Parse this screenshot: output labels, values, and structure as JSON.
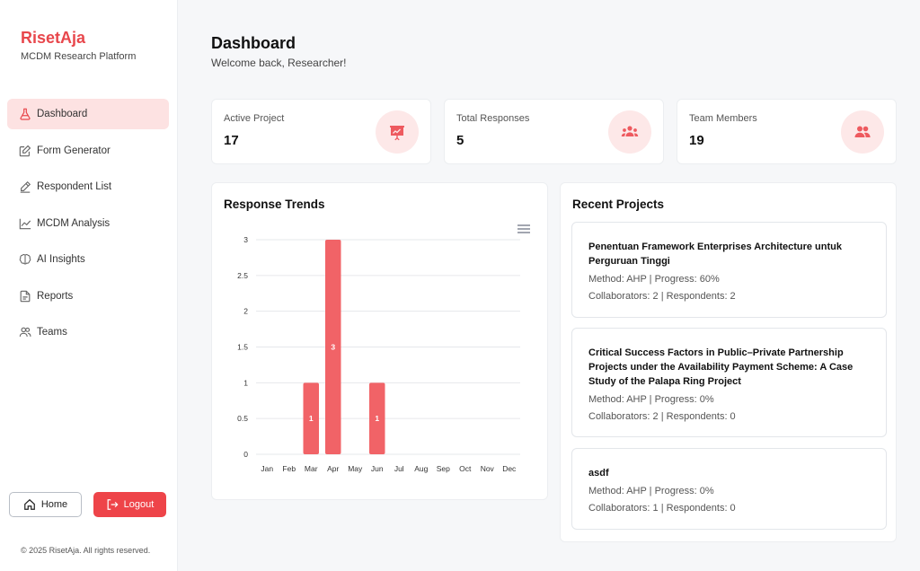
{
  "brand": {
    "name": "RisetAja",
    "subtitle": "MCDM Research Platform"
  },
  "sidebar": {
    "items": [
      {
        "label": "Dashboard",
        "icon": "flask-icon",
        "active": true
      },
      {
        "label": "Form Generator",
        "icon": "edit-icon"
      },
      {
        "label": "Respondent List",
        "icon": "pencil-icon"
      },
      {
        "label": "MCDM Analysis",
        "icon": "line-chart-icon"
      },
      {
        "label": "AI Insights",
        "icon": "brain-icon"
      },
      {
        "label": "Reports",
        "icon": "document-icon"
      },
      {
        "label": "Teams",
        "icon": "users-icon"
      }
    ],
    "home_label": "Home",
    "logout_label": "Logout",
    "copyright": "© 2025 RisetAja. All rights reserved."
  },
  "header": {
    "title": "Dashboard",
    "subtitle": "Welcome back, Researcher!"
  },
  "stats": [
    {
      "label": "Active Project",
      "value": "17",
      "icon": "presentation-icon"
    },
    {
      "label": "Total Responses",
      "value": "5",
      "icon": "group-icon"
    },
    {
      "label": "Team Members",
      "value": "19",
      "icon": "team-icon"
    }
  ],
  "chart": {
    "title": "Response Trends"
  },
  "chart_data": {
    "type": "bar",
    "categories": [
      "Jan",
      "Feb",
      "Mar",
      "Apr",
      "May",
      "Jun",
      "Jul",
      "Aug",
      "Sep",
      "Oct",
      "Nov",
      "Dec"
    ],
    "values": [
      0,
      0,
      1,
      3,
      0,
      1,
      0,
      0,
      0,
      0,
      0,
      0
    ],
    "title": "Response Trends",
    "ylim": [
      0,
      3
    ],
    "yticks": [
      "0",
      "0.5",
      "1",
      "1.5",
      "2",
      "2.5",
      "3"
    ],
    "grid": true,
    "bar_color": "#f16367",
    "data_labels": true
  },
  "projects": {
    "title": "Recent Projects",
    "items": [
      {
        "title": "Penentuan Framework Enterprises Architecture untuk Perguruan Tinggi",
        "method": "Method: AHP | Progress: 60%",
        "collab": "Collaborators: 2 | Respondents: 2"
      },
      {
        "title": "Critical Success Factors in Public–Private Partnership Projects under the Availability Payment Scheme: A Case Study of the Palapa Ring Project",
        "method": "Method: AHP | Progress: 0%",
        "collab": "Collaborators: 2 | Respondents: 0"
      },
      {
        "title": "asdf",
        "method": "Method: AHP | Progress: 0%",
        "collab": "Collaborators: 1 | Respondents: 0"
      }
    ]
  },
  "colors": {
    "accent": "#e8474c",
    "active_bg": "#fde2e2",
    "icon_bg": "#fde8e8"
  }
}
